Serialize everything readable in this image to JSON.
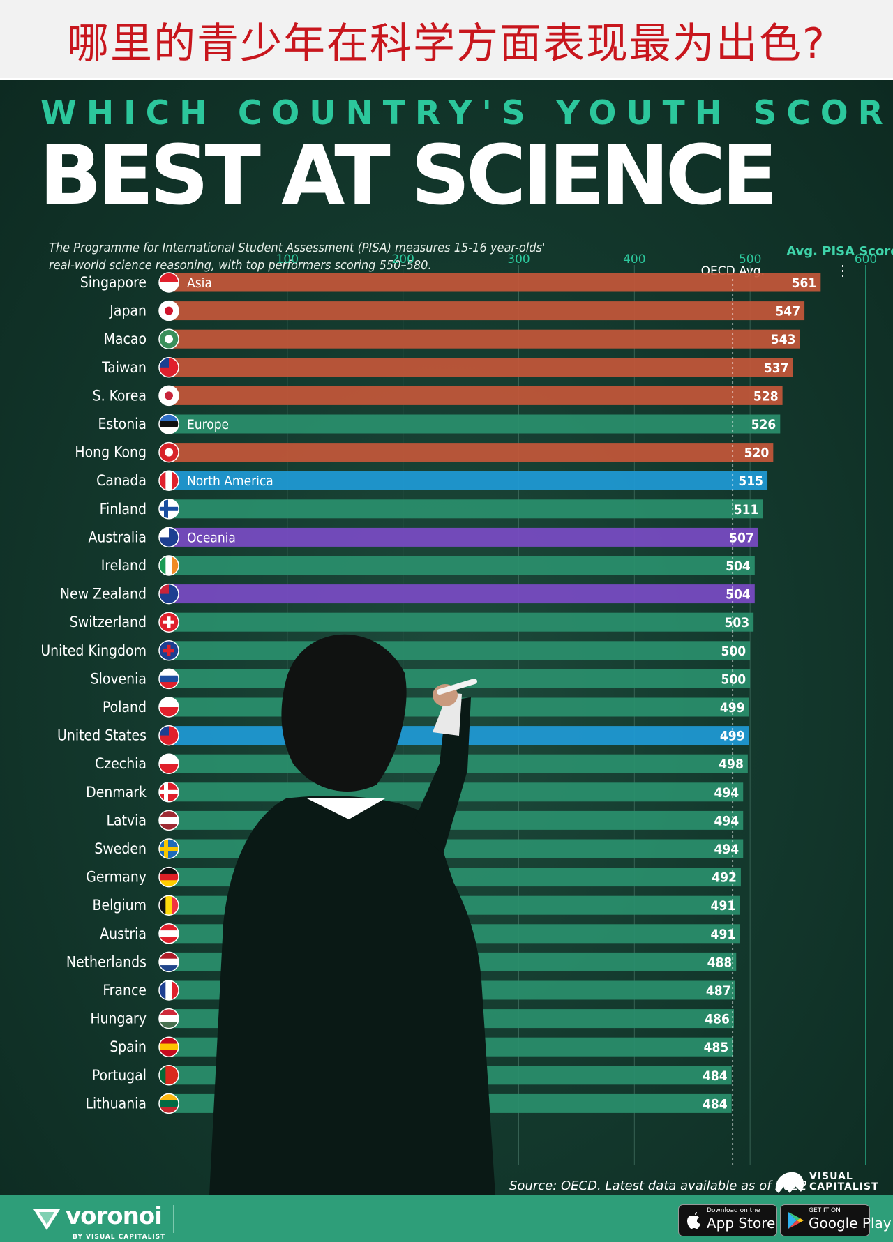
{
  "banner": {
    "title": "哪里的青少年在科学方面表现最为出色?"
  },
  "header": {
    "kicker": "WHICH COUNTRY'S YOUTH SCORES",
    "headline": "BEST AT SCIENCE",
    "subtitle_line1": "The Programme for International Student Assessment (PISA) measures 15-16 year-olds'",
    "subtitle_line2": "real-world science reasoning, with top performers scoring 550–580."
  },
  "chart_data": {
    "type": "bar",
    "orientation": "horizontal",
    "value_label": "Avg. PISA Score",
    "reference_line": {
      "label": "OECD Avg.",
      "value": 485
    },
    "high_marker": {
      "value": 580
    },
    "xlim": [
      0,
      600
    ],
    "xticks": [
      100,
      200,
      300,
      400,
      500,
      600
    ],
    "regions": {
      "Asia": "#c4573a",
      "Europe": "#2a8f6c",
      "North America": "#1f9ad6",
      "Oceania": "#7a4bc4"
    },
    "categories": [
      "Singapore",
      "Japan",
      "Macao",
      "Taiwan",
      "S. Korea",
      "Estonia",
      "Hong Kong",
      "Canada",
      "Finland",
      "Australia",
      "Ireland",
      "New Zealand",
      "Switzerland",
      "United Kingdom",
      "Slovenia",
      "Poland",
      "United States",
      "Czechia",
      "Denmark",
      "Latvia",
      "Sweden",
      "Germany",
      "Belgium",
      "Austria",
      "Netherlands",
      "France",
      "Hungary",
      "Spain",
      "Portugal",
      "Lithuania"
    ],
    "values": [
      561,
      547,
      543,
      537,
      528,
      526,
      520,
      515,
      511,
      507,
      504,
      504,
      503,
      500,
      500,
      499,
      499,
      498,
      494,
      494,
      494,
      492,
      491,
      491,
      488,
      487,
      486,
      485,
      484,
      484
    ],
    "region_of": [
      "Asia",
      "Asia",
      "Asia",
      "Asia",
      "Asia",
      "Europe",
      "Asia",
      "North America",
      "Europe",
      "Oceania",
      "Europe",
      "Oceania",
      "Europe",
      "Europe",
      "Europe",
      "Europe",
      "North America",
      "Europe",
      "Europe",
      "Europe",
      "Europe",
      "Europe",
      "Europe",
      "Europe",
      "Europe",
      "Europe",
      "Europe",
      "Europe",
      "Europe",
      "Europe"
    ],
    "region_labels": [
      {
        "row": 0,
        "text": "Asia"
      },
      {
        "row": 5,
        "text": "Europe"
      },
      {
        "row": 7,
        "text": "North America"
      },
      {
        "row": 9,
        "text": "Oceania"
      }
    ],
    "flags": [
      {
        "type": "h",
        "colors": [
          "#e0202c",
          "#ffffff"
        ]
      },
      {
        "type": "dot",
        "colors": [
          "#ffffff",
          "#d0142c"
        ]
      },
      {
        "type": "dot",
        "colors": [
          "#3a8f5a",
          "#ffffff"
        ]
      },
      {
        "type": "corner",
        "colors": [
          "#e0202c",
          "#1d3f91"
        ]
      },
      {
        "type": "dot",
        "colors": [
          "#ffffff",
          "#c8243a"
        ]
      },
      {
        "type": "h",
        "colors": [
          "#2f6fc7",
          "#111111",
          "#ffffff"
        ]
      },
      {
        "type": "dot",
        "colors": [
          "#d8232a",
          "#ffffff"
        ]
      },
      {
        "type": "v",
        "colors": [
          "#e0202c",
          "#ffffff",
          "#e0202c"
        ]
      },
      {
        "type": "cross",
        "colors": [
          "#ffffff",
          "#1a4ea0"
        ]
      },
      {
        "type": "corner",
        "colors": [
          "#1d3f91",
          "#ffffff"
        ]
      },
      {
        "type": "v",
        "colors": [
          "#1a9b54",
          "#ffffff",
          "#f08a24"
        ]
      },
      {
        "type": "corner",
        "colors": [
          "#1d3f91",
          "#c8243a"
        ]
      },
      {
        "type": "plus",
        "colors": [
          "#e0202c",
          "#ffffff"
        ]
      },
      {
        "type": "plus",
        "colors": [
          "#1d3f91",
          "#e0202c"
        ]
      },
      {
        "type": "h",
        "colors": [
          "#ffffff",
          "#1d4ea0",
          "#e0202c"
        ]
      },
      {
        "type": "h",
        "colors": [
          "#ffffff",
          "#e0202c"
        ]
      },
      {
        "type": "corner",
        "colors": [
          "#e0202c",
          "#1d3f91"
        ]
      },
      {
        "type": "h",
        "colors": [
          "#ffffff",
          "#e0202c"
        ]
      },
      {
        "type": "cross",
        "colors": [
          "#e0202c",
          "#ffffff"
        ]
      },
      {
        "type": "h",
        "colors": [
          "#9e2b33",
          "#ffffff",
          "#9e2b33"
        ]
      },
      {
        "type": "cross",
        "colors": [
          "#1e6bb8",
          "#f7c600"
        ]
      },
      {
        "type": "h",
        "colors": [
          "#111111",
          "#dd1f26",
          "#ffce00"
        ]
      },
      {
        "type": "v",
        "colors": [
          "#111111",
          "#ffd90c",
          "#ef3340"
        ]
      },
      {
        "type": "h",
        "colors": [
          "#e0202c",
          "#ffffff",
          "#e0202c"
        ]
      },
      {
        "type": "h",
        "colors": [
          "#ae1c28",
          "#ffffff",
          "#21468b"
        ]
      },
      {
        "type": "v",
        "colors": [
          "#1d3f91",
          "#ffffff",
          "#e0202c"
        ]
      },
      {
        "type": "h",
        "colors": [
          "#ce2939",
          "#ffffff",
          "#477050"
        ]
      },
      {
        "type": "h",
        "colors": [
          "#c60b1e",
          "#ffc400",
          "#c60b1e"
        ]
      },
      {
        "type": "v",
        "colors": [
          "#046a38",
          "#da291c",
          "#da291c"
        ]
      },
      {
        "type": "h",
        "colors": [
          "#fdb913",
          "#006a44",
          "#c1272d"
        ]
      }
    ]
  },
  "source": "Source: OECD. Latest data available  as of 2022",
  "brand": {
    "vc_line1": "VISUAL",
    "vc_line2": "CAPITALIST",
    "voronoi": "voronoi",
    "voronoi_by": "BY VISUAL CAPITALIST",
    "app_store_small": "Download on the",
    "app_store_big": "App Store",
    "google_small": "GET IT ON",
    "google_big": "Google Play"
  }
}
